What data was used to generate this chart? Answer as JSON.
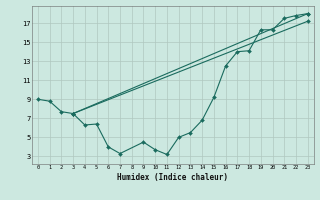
{
  "xlabel": "Humidex (Indice chaleur)",
  "bg_color": "#cce8e0",
  "grid_color": "#b0c8c0",
  "line_color": "#1a6b5e",
  "xlim": [
    -0.5,
    23.5
  ],
  "ylim": [
    2.2,
    18.8
  ],
  "xticks": [
    0,
    1,
    2,
    3,
    4,
    5,
    6,
    7,
    8,
    9,
    10,
    11,
    12,
    13,
    14,
    15,
    16,
    17,
    18,
    19,
    20,
    21,
    22,
    23
  ],
  "yticks": [
    3,
    5,
    7,
    9,
    11,
    13,
    15,
    17
  ],
  "line1_x": [
    0,
    1,
    2,
    3,
    4,
    5,
    6,
    7,
    9,
    10,
    11,
    12,
    13,
    14,
    15,
    16,
    17,
    18,
    19,
    20,
    21,
    22,
    23
  ],
  "line1_y": [
    9.0,
    8.8,
    7.7,
    7.5,
    6.3,
    6.4,
    4.0,
    3.3,
    4.5,
    3.7,
    3.2,
    5.0,
    5.5,
    6.8,
    9.2,
    12.5,
    14.0,
    14.1,
    16.3,
    16.3,
    17.5,
    17.8,
    18.0
  ],
  "line2_x": [
    3,
    23
  ],
  "line2_y": [
    7.5,
    18.0
  ],
  "line3_x": [
    3,
    23
  ],
  "line3_y": [
    7.5,
    17.2
  ],
  "xlabel_fontsize": 5.5,
  "xtick_fontsize": 3.8,
  "ytick_fontsize": 5.0
}
